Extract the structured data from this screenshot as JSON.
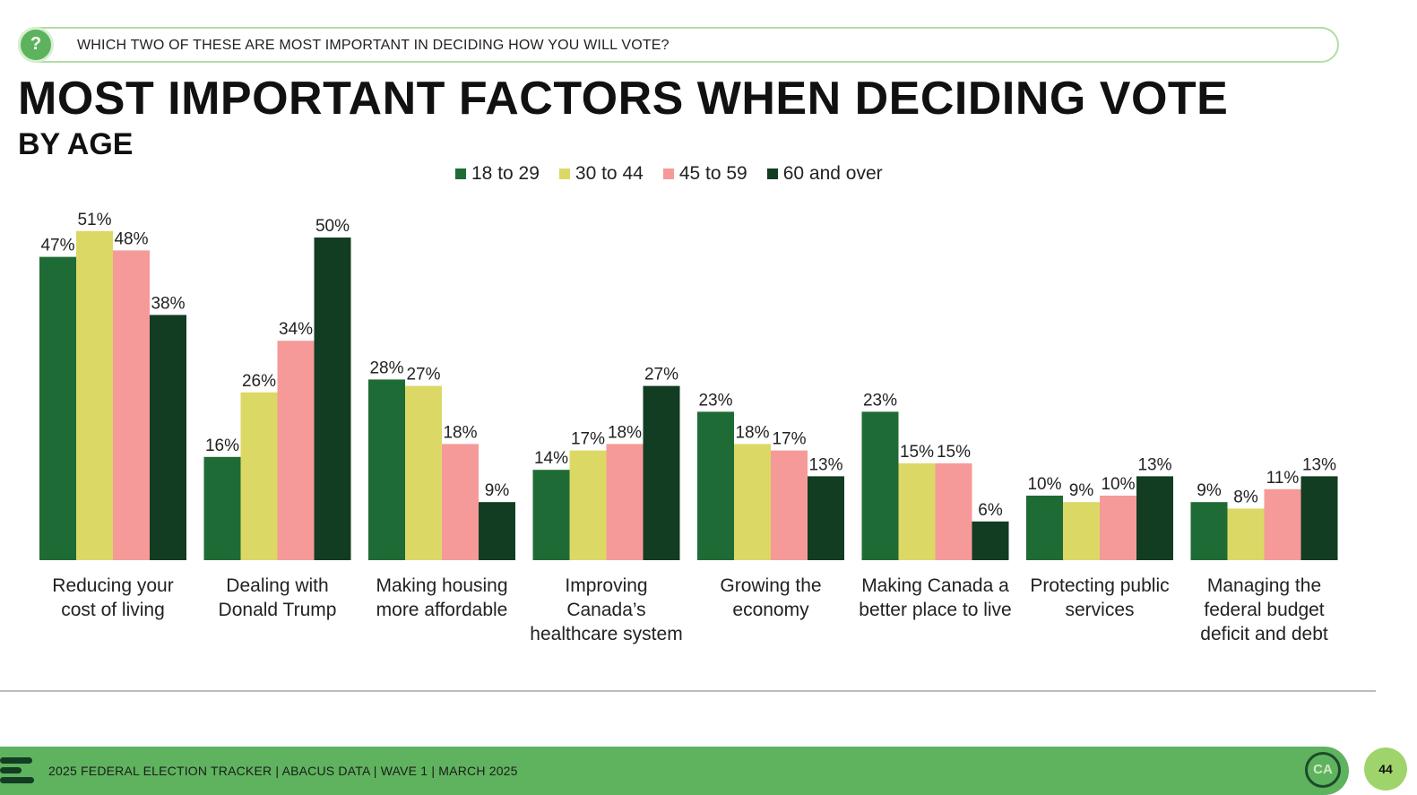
{
  "question": {
    "icon": "question-icon",
    "text": "WHICH TWO OF THESE ARE MOST IMPORTANT IN DECIDING HOW YOU WILL VOTE?"
  },
  "header": {
    "title": "MOST IMPORTANT FACTORS WHEN DECIDING VOTE",
    "subtitle": "BY AGE"
  },
  "colors": {
    "s1": "#1f6b35",
    "s2": "#dcd866",
    "s3": "#f59a98",
    "s4": "#123d22",
    "accent": "#5fb35f",
    "question_border": "#b5dba6"
  },
  "chart_data": {
    "type": "bar",
    "title": "MOST IMPORTANT FACTORS WHEN DECIDING VOTE",
    "subtitle": "BY AGE",
    "xlabel": "",
    "ylabel": "",
    "ylim": [
      0,
      52
    ],
    "grid": false,
    "legend_position": "top-center",
    "categories": [
      "Reducing your\ncost of living",
      "Dealing with\nDonald Trump",
      "Making housing\nmore affordable",
      "Improving\nCanada’s\nhealthcare system",
      "Growing the\neconomy",
      "Making Canada a\nbetter place to live",
      "Protecting public\nservices",
      "Managing the\nfederal budget\ndeficit and debt"
    ],
    "series": [
      {
        "name": "18 to 29",
        "color": "#1f6b35",
        "values": [
          47,
          16,
          28,
          14,
          23,
          23,
          10,
          9
        ]
      },
      {
        "name": "30 to 44",
        "color": "#dcd866",
        "values": [
          51,
          26,
          27,
          17,
          18,
          15,
          9,
          8
        ]
      },
      {
        "name": "45 to 59",
        "color": "#f59a98",
        "values": [
          48,
          34,
          18,
          18,
          17,
          15,
          10,
          11
        ]
      },
      {
        "name": "60 and over",
        "color": "#123d22",
        "values": [
          38,
          50,
          9,
          27,
          13,
          6,
          13,
          13
        ]
      }
    ],
    "value_suffix": "%"
  },
  "footer": {
    "text": "2025 FEDERAL ELECTION TRACKER  |  ABACUS DATA  |  WAVE 1  |  MARCH 2025",
    "badge": "CA",
    "page": "44"
  }
}
